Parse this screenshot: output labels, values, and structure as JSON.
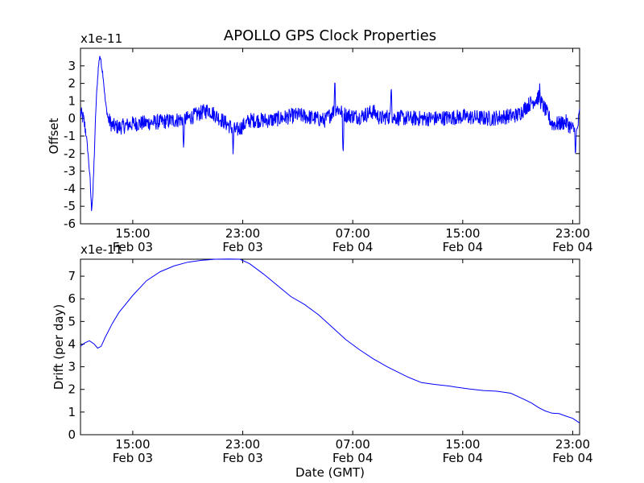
{
  "chart_data": [
    {
      "type": "line",
      "title": "APOLLO GPS Clock Properties",
      "xlabel": "",
      "ylabel": "Offset",
      "offset_label": "x1e-11",
      "color": "#0000ff",
      "x_unit": "hours since Feb 03 00:00 GMT",
      "xlim": [
        11.2,
        47.5
      ],
      "ylim": [
        -6,
        4
      ],
      "y_ticks": [
        {
          "value": -6,
          "label": "-6"
        },
        {
          "value": -5,
          "label": "-5"
        },
        {
          "value": -4,
          "label": "-4"
        },
        {
          "value": -3,
          "label": "-3"
        },
        {
          "value": -2,
          "label": "-2"
        },
        {
          "value": -1,
          "label": "-1"
        },
        {
          "value": 0,
          "label": "0"
        },
        {
          "value": 1,
          "label": "1"
        },
        {
          "value": 2,
          "label": "2"
        },
        {
          "value": 3,
          "label": "3"
        }
      ],
      "x_ticks": [
        {
          "value": 15,
          "label": "15:00",
          "sublabel": "Feb 03"
        },
        {
          "value": 23,
          "label": "23:00",
          "sublabel": "Feb 03"
        },
        {
          "value": 31,
          "label": "07:00",
          "sublabel": "Feb 04"
        },
        {
          "value": 39,
          "label": "15:00",
          "sublabel": "Feb 04"
        },
        {
          "value": 47,
          "label": "23:00",
          "sublabel": "Feb 04"
        }
      ],
      "series": [
        {
          "name": "Offset",
          "noise_amplitude": 0.45,
          "x": [
            11.2,
            11.4,
            11.6,
            11.75,
            11.9,
            12.0,
            12.1,
            12.2,
            12.3,
            12.4,
            12.5,
            12.6,
            12.7,
            12.85,
            13.0,
            13.2,
            13.5,
            14.0,
            15.0,
            17.0,
            19.0,
            20.5,
            21.0,
            22.5,
            22.9,
            23.5,
            25.0,
            27.0,
            29.0,
            29.8,
            30.5,
            31.5,
            32.5,
            33.0,
            33.5,
            35.0,
            37.0,
            39.0,
            41.0,
            43.0,
            43.8,
            44.5,
            45.0,
            45.5,
            46.0,
            46.5,
            47.0,
            47.3,
            47.5
          ],
          "y": [
            0.3,
            0.0,
            -0.8,
            -2.0,
            -3.5,
            -5.2,
            -4.3,
            -2.2,
            0.2,
            1.8,
            2.9,
            3.6,
            3.2,
            2.4,
            1.0,
            0.0,
            -0.4,
            -0.5,
            -0.3,
            -0.2,
            0.0,
            0.5,
            0.2,
            -0.7,
            -0.5,
            -0.1,
            -0.1,
            0.2,
            -0.1,
            0.6,
            0.2,
            0.1,
            0.4,
            0.0,
            0.1,
            0.0,
            0.0,
            0.1,
            0.0,
            0.2,
            0.8,
            1.2,
            0.5,
            -0.3,
            -0.3,
            -0.2,
            -0.6,
            -0.8,
            0.3
          ],
          "spikes": [
            {
              "x": 29.7,
              "y": 2.4
            },
            {
              "x": 33.8,
              "y": 1.9
            },
            {
              "x": 44.6,
              "y": 2.1
            },
            {
              "x": 22.3,
              "y": -2.1
            },
            {
              "x": 18.7,
              "y": -1.8
            },
            {
              "x": 30.3,
              "y": -2.1
            },
            {
              "x": 47.2,
              "y": -2.3
            }
          ]
        }
      ]
    },
    {
      "type": "line",
      "title": "",
      "xlabel": "Date (GMT)",
      "ylabel": "Drift (per day)",
      "offset_label": "x1e-11",
      "color": "#0000ff",
      "x_unit": "hours since Feb 03 00:00 GMT",
      "xlim": [
        11.2,
        47.5
      ],
      "ylim": [
        0,
        7.75
      ],
      "y_ticks": [
        {
          "value": 0,
          "label": "0"
        },
        {
          "value": 1,
          "label": "1"
        },
        {
          "value": 2,
          "label": "2"
        },
        {
          "value": 3,
          "label": "3"
        },
        {
          "value": 4,
          "label": "4"
        },
        {
          "value": 5,
          "label": "5"
        },
        {
          "value": 6,
          "label": "6"
        },
        {
          "value": 7,
          "label": "7"
        }
      ],
      "x_ticks": [
        {
          "value": 15,
          "label": "15:00",
          "sublabel": "Feb 03"
        },
        {
          "value": 23,
          "label": "23:00",
          "sublabel": "Feb 03"
        },
        {
          "value": 31,
          "label": "07:00",
          "sublabel": "Feb 04"
        },
        {
          "value": 39,
          "label": "15:00",
          "sublabel": "Feb 04"
        },
        {
          "value": 47,
          "label": "23:00",
          "sublabel": "Feb 04"
        }
      ],
      "series": [
        {
          "name": "Drift",
          "x": [
            11.2,
            11.5,
            11.85,
            12.2,
            12.45,
            12.7,
            13.0,
            13.5,
            14.0,
            15.0,
            16.0,
            17.0,
            18.0,
            19.0,
            20.0,
            21.0,
            22.0,
            22.8,
            23.5,
            24.5,
            25.5,
            26.5,
            27.5,
            28.5,
            29.5,
            30.5,
            31.5,
            32.5,
            33.5,
            34.0,
            35.0,
            36.0,
            37.0,
            38.0,
            38.5,
            39.5,
            40.5,
            41.5,
            42.5,
            43.5,
            44.0,
            44.5,
            45.0,
            45.5,
            46.0,
            46.5,
            47.0,
            47.5
          ],
          "y": [
            3.9,
            4.05,
            4.15,
            4.0,
            3.82,
            3.9,
            4.3,
            4.9,
            5.4,
            6.15,
            6.8,
            7.2,
            7.45,
            7.62,
            7.7,
            7.75,
            7.76,
            7.75,
            7.55,
            7.1,
            6.6,
            6.1,
            5.75,
            5.3,
            4.75,
            4.2,
            3.75,
            3.35,
            3.0,
            2.85,
            2.55,
            2.3,
            2.22,
            2.15,
            2.1,
            2.02,
            1.95,
            1.92,
            1.83,
            1.55,
            1.4,
            1.2,
            1.05,
            0.95,
            0.93,
            0.82,
            0.72,
            0.52
          ]
        }
      ]
    }
  ]
}
